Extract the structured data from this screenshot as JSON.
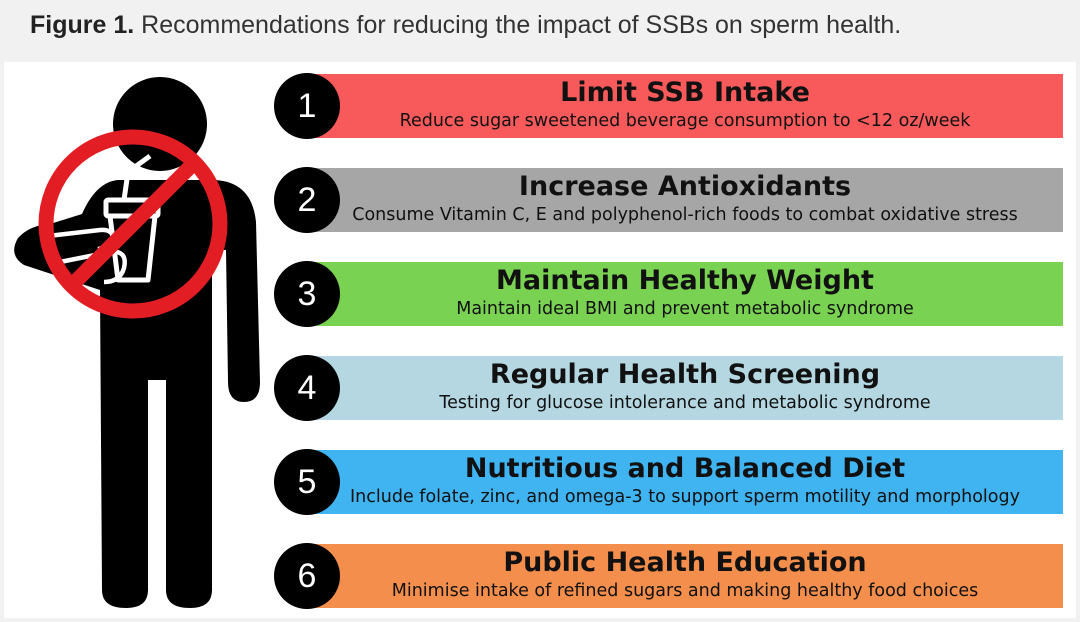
{
  "caption": {
    "label": "Figure 1.",
    "text": " Recommendations for reducing the impact of SSBs on sperm health."
  },
  "colors": {
    "bar_1": "#f85a5c",
    "bar_2": "#a6a6a6",
    "bar_3": "#7ad253",
    "bar_4": "#b4d7e2",
    "bar_5": "#40b3f1",
    "bar_6": "#f38e4c",
    "no_sign": "#e31d24"
  },
  "icons": {
    "figure": "person-silhouette-icon",
    "prohibition": "no-sugary-drink-icon"
  },
  "recommendations": [
    {
      "number": "1",
      "title": "Limit SSB Intake",
      "description": "Reduce sugar sweetened beverage consumption to <12 oz/week"
    },
    {
      "number": "2",
      "title": "Increase Antioxidants",
      "description": "Consume Vitamin C, E and polyphenol-rich foods to combat oxidative stress"
    },
    {
      "number": "3",
      "title": "Maintain Healthy Weight",
      "description": "Maintain ideal BMI and prevent metabolic syndrome"
    },
    {
      "number": "4",
      "title": "Regular Health Screening",
      "description": "Testing for glucose intolerance and metabolic syndrome"
    },
    {
      "number": "5",
      "title": "Nutritious and Balanced Diet",
      "description": "Include folate, zinc, and omega-3 to support sperm motility and morphology"
    },
    {
      "number": "6",
      "title": "Public Health Education",
      "description": "Minimise intake of refined sugars and making healthy food choices"
    }
  ]
}
